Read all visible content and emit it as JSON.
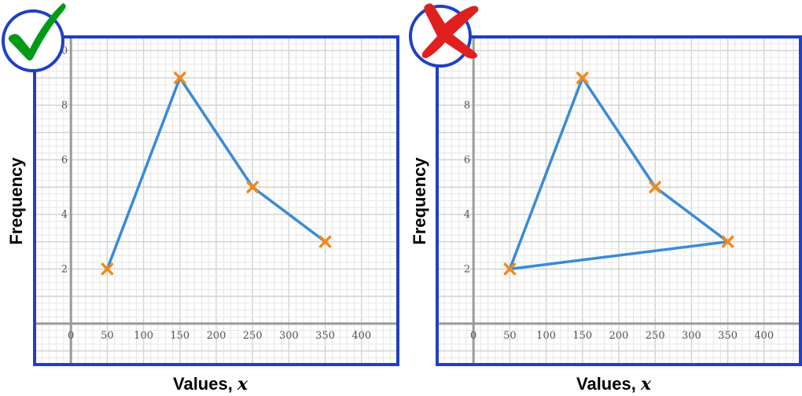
{
  "colors": {
    "frame": "#1f3fc8",
    "line": "#3a8ad6",
    "marker": "#f08a1c",
    "tick_mark": "#009a17",
    "cross_mark": "#e0201f",
    "grid_minor": "#e6e6e6",
    "grid_major": "#d2d2d2",
    "axis": "#9a9a9a"
  },
  "badges": [
    {
      "icon": "check-mark-icon",
      "meaning": "correct"
    },
    {
      "icon": "cross-mark-icon",
      "meaning": "incorrect"
    }
  ],
  "chart_data": [
    {
      "type": "line",
      "title": "",
      "xlabel": "Values, ",
      "xlabel_var": "x",
      "ylabel": "Frequency",
      "xlim": [
        -50,
        450
      ],
      "ylim": [
        -1.5,
        10.5
      ],
      "x_ticks": [
        0,
        50,
        100,
        150,
        200,
        250,
        300,
        350,
        400
      ],
      "x_tick_labels": [
        "0",
        "50",
        "100",
        "150",
        "200",
        "250",
        "300",
        "350",
        "400"
      ],
      "y_ticks": [
        2,
        4,
        6,
        8,
        10
      ],
      "y_tick_labels": [
        "2",
        "4",
        "6",
        "8",
        "10"
      ],
      "grid": true,
      "closed": false,
      "series": [
        {
          "x": [
            50,
            150,
            250,
            350
          ],
          "y": [
            2,
            9,
            5,
            3
          ]
        }
      ]
    },
    {
      "type": "line",
      "title": "",
      "xlabel": "Values, ",
      "xlabel_var": "x",
      "ylabel": "Frequency",
      "xlim": [
        -50,
        450
      ],
      "ylim": [
        -1.5,
        10.5
      ],
      "x_ticks": [
        0,
        50,
        100,
        150,
        200,
        250,
        300,
        350,
        400
      ],
      "x_tick_labels": [
        "0",
        "50",
        "100",
        "150",
        "200",
        "250",
        "300",
        "350",
        "400"
      ],
      "y_ticks": [
        2,
        4,
        6,
        8,
        10
      ],
      "y_tick_labels": [
        "2",
        "4",
        "6",
        "8",
        "10"
      ],
      "grid": true,
      "closed": true,
      "series": [
        {
          "x": [
            50,
            150,
            250,
            350
          ],
          "y": [
            2,
            9,
            5,
            3
          ]
        }
      ]
    }
  ]
}
